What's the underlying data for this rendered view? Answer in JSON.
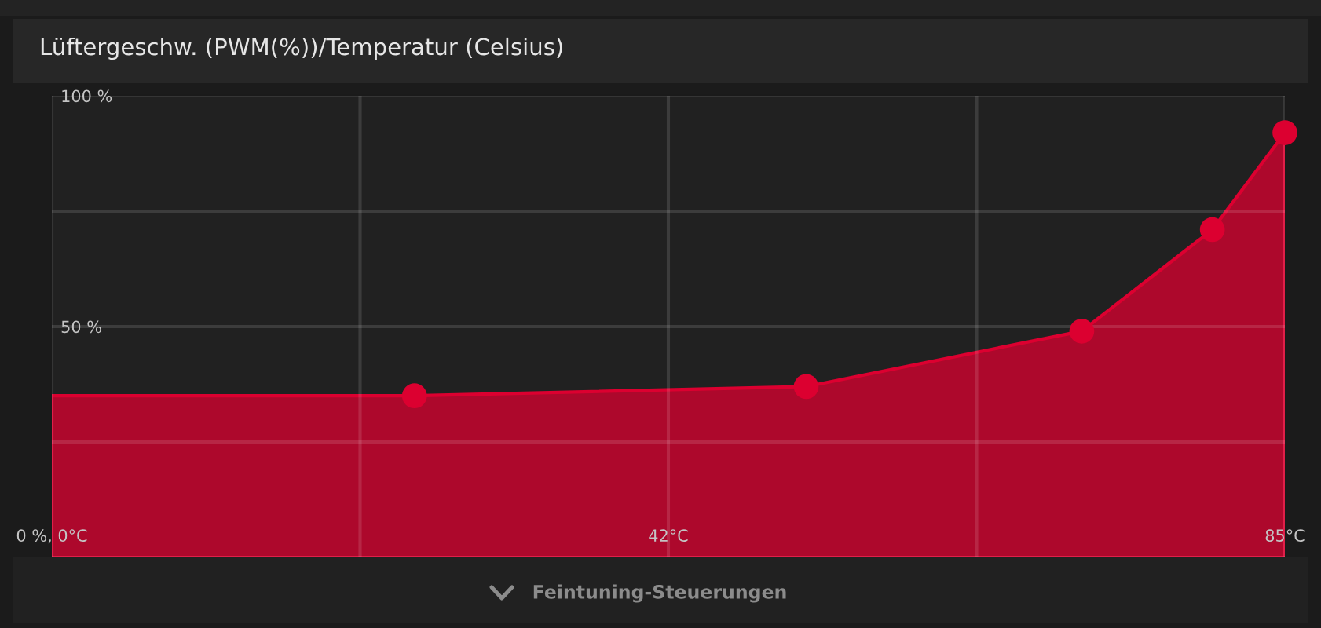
{
  "chart_data": {
    "type": "area",
    "title": "Lüftergeschw. (PWM(%))/Temperatur (Celsius)",
    "annotations": [
      "Feintuning-Steuerungen"
    ],
    "series": [
      {
        "color": "#dc0030",
        "x": [
          0,
          25,
          52,
          71,
          80,
          85
        ],
        "values": [
          35,
          35,
          37,
          49,
          71,
          92
        ]
      },
      {
        "type": "scatter",
        "color": "#dc0030",
        "marker": "circle",
        "x": [
          25,
          52,
          71,
          80,
          85
        ],
        "values": [
          35,
          37,
          49,
          71,
          92
        ]
      }
    ],
    "xlim": [
      0,
      85
    ],
    "ylim": [
      0,
      100
    ],
    "xticks": [
      {
        "value": 0,
        "label": "0 %, 0°C"
      },
      {
        "value": 21.25,
        "label": null
      },
      {
        "value": 42.5,
        "label": "42°C"
      },
      {
        "value": 63.75,
        "label": null
      },
      {
        "value": 85,
        "label": "85°C"
      }
    ],
    "yticks": [
      {
        "value": 0,
        "label": null
      },
      {
        "value": 25,
        "label": null
      },
      {
        "value": 50,
        "label": "50 %"
      },
      {
        "value": 75,
        "label": null
      },
      {
        "value": 100,
        "label": "100 %"
      }
    ],
    "grid": true
  }
}
